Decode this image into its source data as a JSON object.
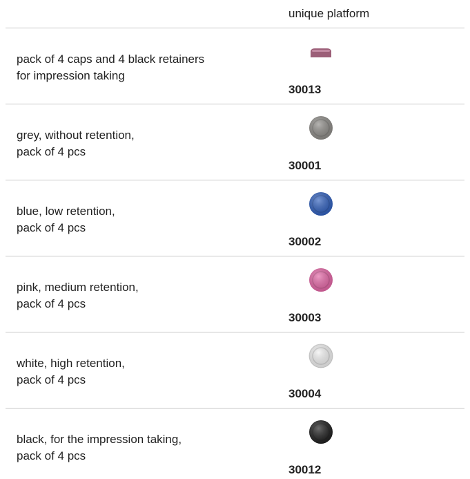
{
  "header": {
    "column_title": "unique platform"
  },
  "rows": [
    {
      "description": [
        "pack of 4 caps and 4 black retainers",
        "for impression taking"
      ],
      "code": "30013"
    },
    {
      "description": [
        "grey, without retention,",
        "pack of 4 pcs"
      ],
      "code": "30001"
    },
    {
      "description": [
        "blue, low retention,",
        "pack of 4 pcs"
      ],
      "code": "30002"
    },
    {
      "description": [
        "pink, medium retention,",
        "pack of 4 pcs"
      ],
      "code": "30003"
    },
    {
      "description": [
        "white, high retention,",
        "pack of 4 pcs"
      ],
      "code": "30004"
    },
    {
      "description": [
        "black, for the impression taking,",
        "pack of 4 pcs"
      ],
      "code": "30012"
    }
  ]
}
